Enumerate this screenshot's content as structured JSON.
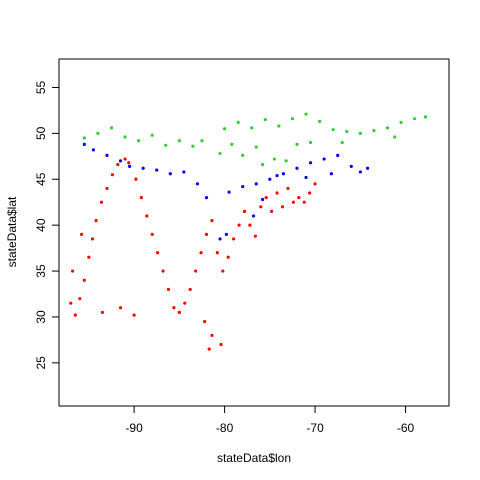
{
  "chart_data": {
    "type": "scatter",
    "title": "",
    "xlabel": "stateData$lon",
    "ylabel": "stateData$lat",
    "xlim": [
      -98.3,
      -55.2
    ],
    "ylim": [
      20.3,
      58.1
    ],
    "x_ticks": [
      -90,
      -80,
      -70,
      -60
    ],
    "y_ticks": [
      25,
      30,
      35,
      40,
      45,
      50,
      55
    ],
    "x_tick_labels": [
      "-90",
      "-80",
      "-70",
      "-60"
    ],
    "y_tick_labels": [
      "25",
      "30",
      "35",
      "40",
      "45",
      "50",
      "55"
    ],
    "grid": false,
    "legend": "none",
    "series": [
      {
        "color": "#ff0000",
        "points": [
          [
            -96.5,
            30.2
          ],
          [
            -96.0,
            32.0
          ],
          [
            -95.5,
            34.0
          ],
          [
            -95.0,
            36.5
          ],
          [
            -94.6,
            38.5
          ],
          [
            -94.2,
            40.5
          ],
          [
            -93.6,
            42.5
          ],
          [
            -93.0,
            44.0
          ],
          [
            -92.4,
            45.5
          ],
          [
            -91.8,
            46.6
          ],
          [
            -91.0,
            47.2
          ],
          [
            -90.6,
            46.8
          ],
          [
            -89.8,
            45.0
          ],
          [
            -89.2,
            43.0
          ],
          [
            -88.6,
            41.0
          ],
          [
            -88.0,
            39.0
          ],
          [
            -87.4,
            37.0
          ],
          [
            -86.8,
            35.0
          ],
          [
            -86.2,
            33.0
          ],
          [
            -85.6,
            31.0
          ],
          [
            -85.0,
            30.5
          ],
          [
            -84.4,
            31.5
          ],
          [
            -83.8,
            33.0
          ],
          [
            -83.2,
            35.0
          ],
          [
            -82.6,
            37.0
          ],
          [
            -82.0,
            39.0
          ],
          [
            -81.4,
            40.5
          ],
          [
            -80.8,
            37.0
          ],
          [
            -80.2,
            35.0
          ],
          [
            -79.6,
            36.5
          ],
          [
            -79.0,
            38.5
          ],
          [
            -78.4,
            40.0
          ],
          [
            -77.8,
            41.5
          ],
          [
            -77.2,
            40.0
          ],
          [
            -76.6,
            38.8
          ],
          [
            -76.0,
            42.0
          ],
          [
            -75.4,
            43.0
          ],
          [
            -74.8,
            41.5
          ],
          [
            -74.2,
            43.5
          ],
          [
            -73.6,
            42.0
          ],
          [
            -73.0,
            44.0
          ],
          [
            -72.4,
            42.5
          ],
          [
            -71.8,
            43.0
          ],
          [
            -71.2,
            42.5
          ],
          [
            -70.6,
            43.5
          ],
          [
            -70.0,
            44.5
          ],
          [
            -81.7,
            26.5
          ],
          [
            -81.4,
            28.0
          ],
          [
            -82.2,
            29.5
          ],
          [
            -80.4,
            27.0
          ],
          [
            -90.0,
            30.2
          ],
          [
            -91.5,
            31.0
          ],
          [
            -93.5,
            30.5
          ],
          [
            -97.0,
            31.5
          ],
          [
            -96.8,
            35.0
          ],
          [
            -95.8,
            39.0
          ]
        ]
      },
      {
        "color": "#0000ff",
        "points": [
          [
            -95.5,
            48.8
          ],
          [
            -94.5,
            48.2
          ],
          [
            -93.0,
            47.6
          ],
          [
            -91.5,
            47.0
          ],
          [
            -90.5,
            46.4
          ],
          [
            -89.0,
            46.2
          ],
          [
            -87.5,
            46.0
          ],
          [
            -86.0,
            45.6
          ],
          [
            -84.5,
            45.8
          ],
          [
            -83.0,
            44.5
          ],
          [
            -82.0,
            43.0
          ],
          [
            -79.5,
            43.6
          ],
          [
            -78.0,
            44.2
          ],
          [
            -76.5,
            44.5
          ],
          [
            -75.0,
            45.0
          ],
          [
            -73.5,
            45.6
          ],
          [
            -72.0,
            46.2
          ],
          [
            -70.5,
            46.8
          ],
          [
            -69.0,
            47.2
          ],
          [
            -67.5,
            47.6
          ],
          [
            -66.0,
            46.4
          ],
          [
            -65.0,
            45.8
          ],
          [
            -64.2,
            46.2
          ],
          [
            -68.2,
            45.6
          ],
          [
            -71.0,
            45.2
          ],
          [
            -74.2,
            45.4
          ],
          [
            -80.5,
            38.5
          ],
          [
            -79.8,
            39.0
          ],
          [
            -76.8,
            41.0
          ],
          [
            -75.8,
            42.8
          ]
        ]
      },
      {
        "color": "#32cd32",
        "points": [
          [
            -95.5,
            49.5
          ],
          [
            -94.0,
            50.0
          ],
          [
            -92.5,
            50.6
          ],
          [
            -91.0,
            49.6
          ],
          [
            -89.5,
            49.2
          ],
          [
            -88.0,
            49.8
          ],
          [
            -86.5,
            48.7
          ],
          [
            -85.0,
            49.2
          ],
          [
            -83.5,
            48.6
          ],
          [
            -82.5,
            49.2
          ],
          [
            -80.0,
            50.5
          ],
          [
            -78.5,
            51.2
          ],
          [
            -77.0,
            50.6
          ],
          [
            -75.5,
            51.5
          ],
          [
            -74.0,
            50.8
          ],
          [
            -72.5,
            51.6
          ],
          [
            -71.0,
            52.1
          ],
          [
            -69.5,
            51.3
          ],
          [
            -68.0,
            50.4
          ],
          [
            -66.5,
            50.2
          ],
          [
            -65.0,
            50.0
          ],
          [
            -63.5,
            50.3
          ],
          [
            -62.0,
            50.6
          ],
          [
            -60.5,
            51.2
          ],
          [
            -59.0,
            51.6
          ],
          [
            -57.8,
            51.8
          ],
          [
            -79.2,
            48.8
          ],
          [
            -76.5,
            48.5
          ],
          [
            -74.5,
            47.2
          ],
          [
            -72.0,
            48.8
          ],
          [
            -70.5,
            49.0
          ],
          [
            -67.0,
            49.0
          ],
          [
            -61.2,
            49.6
          ],
          [
            -80.5,
            47.8
          ],
          [
            -78.0,
            47.6
          ],
          [
            -75.8,
            46.6
          ],
          [
            -73.2,
            47.0
          ]
        ]
      }
    ]
  }
}
